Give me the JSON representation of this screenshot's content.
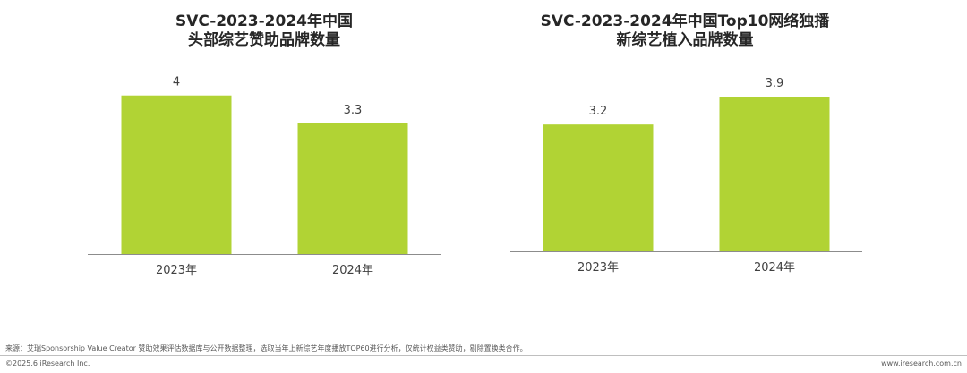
{
  "colors": {
    "bar": "#b1d334",
    "axis": "#8c8c8c"
  },
  "chart_data": [
    {
      "type": "bar",
      "title_lines": [
        "SVC-2023-2024年中国",
        "头部综艺赞助品牌数量"
      ],
      "categories": [
        "2023年",
        "2024年"
      ],
      "values": [
        4,
        3.3
      ],
      "value_labels": [
        "4",
        "3.3"
      ],
      "ylim": [
        0,
        4.4
      ],
      "grid": false,
      "xlabel": "",
      "ylabel": ""
    },
    {
      "type": "bar",
      "title_lines": [
        "SVC-2023-2024年中国Top10网络独播",
        "新综艺植入品牌数量"
      ],
      "categories": [
        "2023年",
        "2024年"
      ],
      "values": [
        3.2,
        3.9
      ],
      "value_labels": [
        "3.2",
        "3.9"
      ],
      "ylim": [
        0,
        4.4
      ],
      "grid": false,
      "xlabel": "",
      "ylabel": ""
    }
  ],
  "footer": {
    "source": "来源：艾瑞Sponsorship Value Creator 赞助效果评估数据库与公开数据整理，选取当年上新综艺年度播放TOP60进行分析，仅统计权益类赞助，剔除置换类合作。",
    "copyright": "©2025.6 iResearch Inc.",
    "url": "www.iresearch.com.cn"
  }
}
